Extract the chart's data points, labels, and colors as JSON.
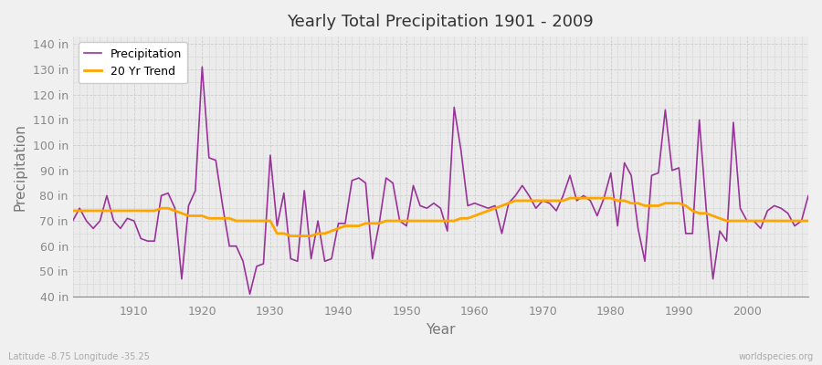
{
  "title": "Yearly Total Precipitation 1901 - 2009",
  "xlabel": "Year",
  "ylabel": "Precipitation",
  "background_color": "#f0f0f0",
  "plot_bg_color": "#ebebeb",
  "precip_color": "#993399",
  "trend_color": "#FFA500",
  "precip_label": "Precipitation",
  "trend_label": "20 Yr Trend",
  "ylim": [
    40,
    143
  ],
  "yticks": [
    40,
    50,
    60,
    70,
    80,
    90,
    100,
    110,
    120,
    130,
    140
  ],
  "xlim": [
    1901,
    2009
  ],
  "footer_left": "Latitude -8.75 Longitude -35.25",
  "footer_right": "worldspecies.org",
  "years": [
    1901,
    1902,
    1903,
    1904,
    1905,
    1906,
    1907,
    1908,
    1909,
    1910,
    1911,
    1912,
    1913,
    1914,
    1915,
    1916,
    1917,
    1918,
    1919,
    1920,
    1921,
    1922,
    1923,
    1924,
    1925,
    1926,
    1927,
    1928,
    1929,
    1930,
    1931,
    1932,
    1933,
    1934,
    1935,
    1936,
    1937,
    1938,
    1939,
    1940,
    1941,
    1942,
    1943,
    1944,
    1945,
    1946,
    1947,
    1948,
    1949,
    1950,
    1951,
    1952,
    1953,
    1954,
    1955,
    1956,
    1957,
    1958,
    1959,
    1960,
    1961,
    1962,
    1963,
    1964,
    1965,
    1966,
    1967,
    1968,
    1969,
    1970,
    1971,
    1972,
    1973,
    1974,
    1975,
    1976,
    1977,
    1978,
    1979,
    1980,
    1981,
    1982,
    1983,
    1984,
    1985,
    1986,
    1987,
    1988,
    1989,
    1990,
    1991,
    1992,
    1993,
    1994,
    1995,
    1996,
    1997,
    1998,
    1999,
    2000,
    2001,
    2002,
    2003,
    2004,
    2005,
    2006,
    2007,
    2008,
    2009
  ],
  "precip": [
    70,
    75,
    70,
    67,
    70,
    80,
    70,
    67,
    71,
    70,
    63,
    62,
    62,
    80,
    81,
    75,
    47,
    76,
    82,
    131,
    95,
    94,
    76,
    60,
    60,
    54,
    41,
    52,
    53,
    96,
    68,
    81,
    55,
    54,
    82,
    55,
    70,
    54,
    55,
    69,
    69,
    86,
    87,
    85,
    55,
    69,
    87,
    85,
    70,
    68,
    84,
    76,
    75,
    77,
    75,
    66,
    115,
    98,
    76,
    77,
    76,
    75,
    76,
    65,
    77,
    80,
    84,
    80,
    75,
    78,
    77,
    74,
    80,
    88,
    78,
    80,
    78,
    72,
    79,
    89,
    68,
    93,
    88,
    67,
    54,
    88,
    89,
    114,
    90,
    91,
    65,
    65,
    110,
    75,
    47,
    66,
    62,
    109,
    75,
    70,
    70,
    67,
    74,
    76,
    75,
    73,
    68,
    70,
    80
  ],
  "trend": [
    74,
    74,
    74,
    74,
    74,
    74,
    74,
    74,
    74,
    74,
    74,
    74,
    74,
    75,
    75,
    74,
    73,
    72,
    72,
    72,
    71,
    71,
    71,
    71,
    70,
    70,
    70,
    70,
    70,
    70,
    65,
    65,
    64,
    64,
    64,
    64,
    65,
    65,
    66,
    67,
    68,
    68,
    68,
    69,
    69,
    69,
    70,
    70,
    70,
    70,
    70,
    70,
    70,
    70,
    70,
    70,
    70,
    71,
    71,
    72,
    73,
    74,
    75,
    76,
    77,
    78,
    78,
    78,
    78,
    78,
    78,
    78,
    78,
    79,
    79,
    79,
    79,
    79,
    79,
    79,
    78,
    78,
    77,
    77,
    76,
    76,
    76,
    77,
    77,
    77,
    76,
    74,
    73,
    73,
    72,
    71,
    70,
    70,
    70,
    70,
    70,
    70,
    70,
    70,
    70,
    70,
    70,
    70,
    70
  ]
}
